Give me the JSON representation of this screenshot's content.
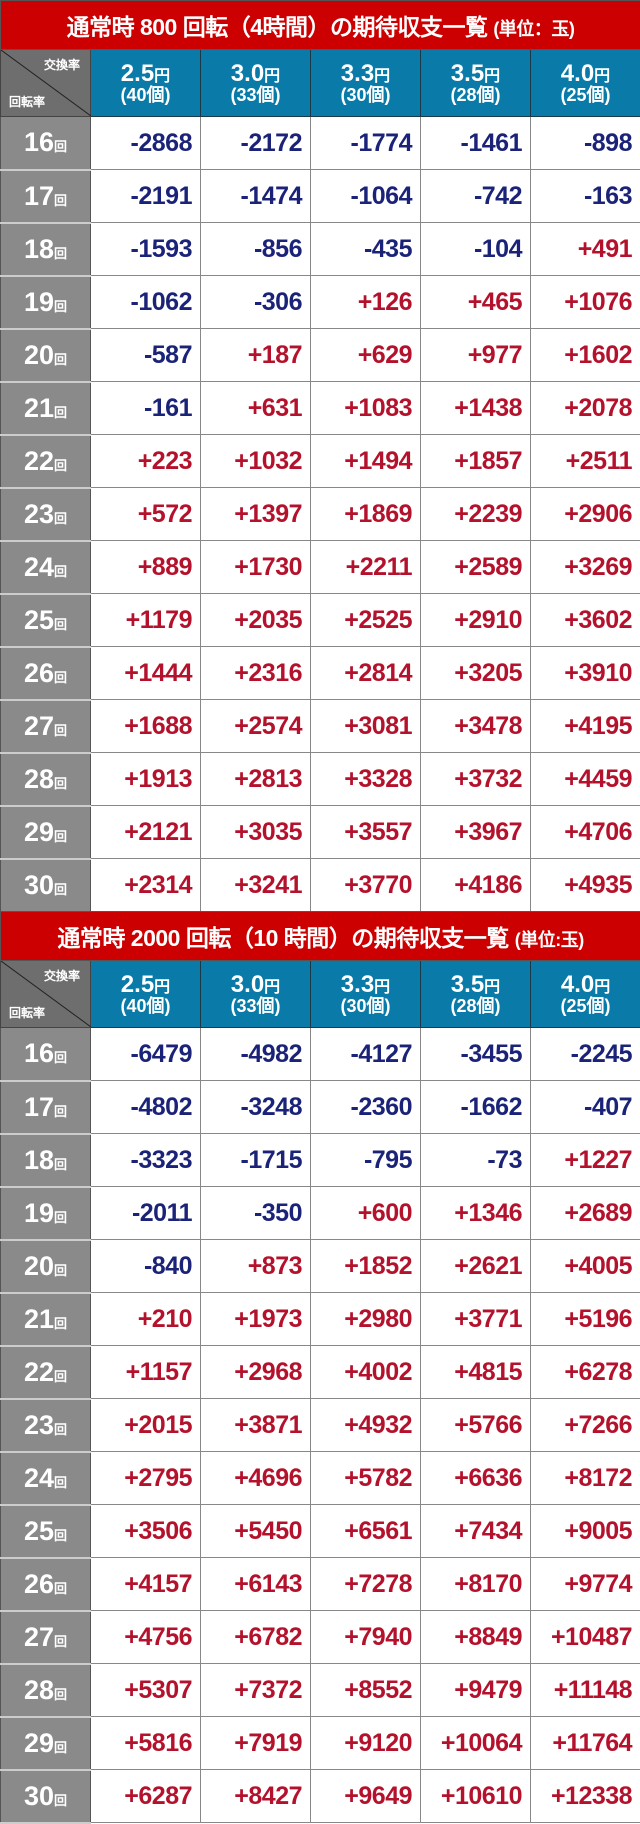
{
  "colors": {
    "title_bg": "#cc0000",
    "header_bg": "#0a7aa8",
    "negative": "#1b2378",
    "positive": "#b4122c"
  },
  "corner": {
    "top": "交換率",
    "bottom": "回転率"
  },
  "row_suffix": "回",
  "columns": [
    {
      "rate": "2.5",
      "yen": "円",
      "count": "(40個)"
    },
    {
      "rate": "3.0",
      "yen": "円",
      "count": "(33個)"
    },
    {
      "rate": "3.3",
      "yen": "円",
      "count": "(30個)"
    },
    {
      "rate": "3.5",
      "yen": "円",
      "count": "(28個)"
    },
    {
      "rate": "4.0",
      "yen": "円",
      "count": "(25個)"
    }
  ],
  "tables": [
    {
      "title": "通常時 800 回転（4時間）の期待収支一覧",
      "unit": "(単位：玉)",
      "rows": [
        {
          "spin": "16",
          "values": [
            "-2868",
            "-2172",
            "-1774",
            "-1461",
            "-898"
          ]
        },
        {
          "spin": "17",
          "values": [
            "-2191",
            "-1474",
            "-1064",
            "-742",
            "-163"
          ]
        },
        {
          "spin": "18",
          "values": [
            "-1593",
            "-856",
            "-435",
            "-104",
            "+491"
          ]
        },
        {
          "spin": "19",
          "values": [
            "-1062",
            "-306",
            "+126",
            "+465",
            "+1076"
          ]
        },
        {
          "spin": "20",
          "values": [
            "-587",
            "+187",
            "+629",
            "+977",
            "+1602"
          ]
        },
        {
          "spin": "21",
          "values": [
            "-161",
            "+631",
            "+1083",
            "+1438",
            "+2078"
          ]
        },
        {
          "spin": "22",
          "values": [
            "+223",
            "+1032",
            "+1494",
            "+1857",
            "+2511"
          ]
        },
        {
          "spin": "23",
          "values": [
            "+572",
            "+1397",
            "+1869",
            "+2239",
            "+2906"
          ]
        },
        {
          "spin": "24",
          "values": [
            "+889",
            "+1730",
            "+2211",
            "+2589",
            "+3269"
          ]
        },
        {
          "spin": "25",
          "values": [
            "+1179",
            "+2035",
            "+2525",
            "+2910",
            "+3602"
          ]
        },
        {
          "spin": "26",
          "values": [
            "+1444",
            "+2316",
            "+2814",
            "+3205",
            "+3910"
          ]
        },
        {
          "spin": "27",
          "values": [
            "+1688",
            "+2574",
            "+3081",
            "+3478",
            "+4195"
          ]
        },
        {
          "spin": "28",
          "values": [
            "+1913",
            "+2813",
            "+3328",
            "+3732",
            "+4459"
          ]
        },
        {
          "spin": "29",
          "values": [
            "+2121",
            "+3035",
            "+3557",
            "+3967",
            "+4706"
          ]
        },
        {
          "spin": "30",
          "values": [
            "+2314",
            "+3241",
            "+3770",
            "+4186",
            "+4935"
          ]
        }
      ]
    },
    {
      "title": "通常時 2000 回転（10 時間）の期待収支一覧",
      "unit": "(単位:玉)",
      "rows": [
        {
          "spin": "16",
          "values": [
            "-6479",
            "-4982",
            "-4127",
            "-3455",
            "-2245"
          ]
        },
        {
          "spin": "17",
          "values": [
            "-4802",
            "-3248",
            "-2360",
            "-1662",
            "-407"
          ]
        },
        {
          "spin": "18",
          "values": [
            "-3323",
            "-1715",
            "-795",
            "-73",
            "+1227"
          ]
        },
        {
          "spin": "19",
          "values": [
            "-2011",
            "-350",
            "+600",
            "+1346",
            "+2689"
          ]
        },
        {
          "spin": "20",
          "values": [
            "-840",
            "+873",
            "+1852",
            "+2621",
            "+4005"
          ]
        },
        {
          "spin": "21",
          "values": [
            "+210",
            "+1973",
            "+2980",
            "+3771",
            "+5196"
          ]
        },
        {
          "spin": "22",
          "values": [
            "+1157",
            "+2968",
            "+4002",
            "+4815",
            "+6278"
          ]
        },
        {
          "spin": "23",
          "values": [
            "+2015",
            "+3871",
            "+4932",
            "+5766",
            "+7266"
          ]
        },
        {
          "spin": "24",
          "values": [
            "+2795",
            "+4696",
            "+5782",
            "+6636",
            "+8172"
          ]
        },
        {
          "spin": "25",
          "values": [
            "+3506",
            "+5450",
            "+6561",
            "+7434",
            "+9005"
          ]
        },
        {
          "spin": "26",
          "values": [
            "+4157",
            "+6143",
            "+7278",
            "+8170",
            "+9774"
          ]
        },
        {
          "spin": "27",
          "values": [
            "+4756",
            "+6782",
            "+7940",
            "+8849",
            "+10487"
          ]
        },
        {
          "spin": "28",
          "values": [
            "+5307",
            "+7372",
            "+8552",
            "+9479",
            "+11148"
          ]
        },
        {
          "spin": "29",
          "values": [
            "+5816",
            "+7919",
            "+9120",
            "+10064",
            "+11764"
          ]
        },
        {
          "spin": "30",
          "values": [
            "+6287",
            "+8427",
            "+9649",
            "+10610",
            "+12338"
          ]
        }
      ]
    }
  ]
}
